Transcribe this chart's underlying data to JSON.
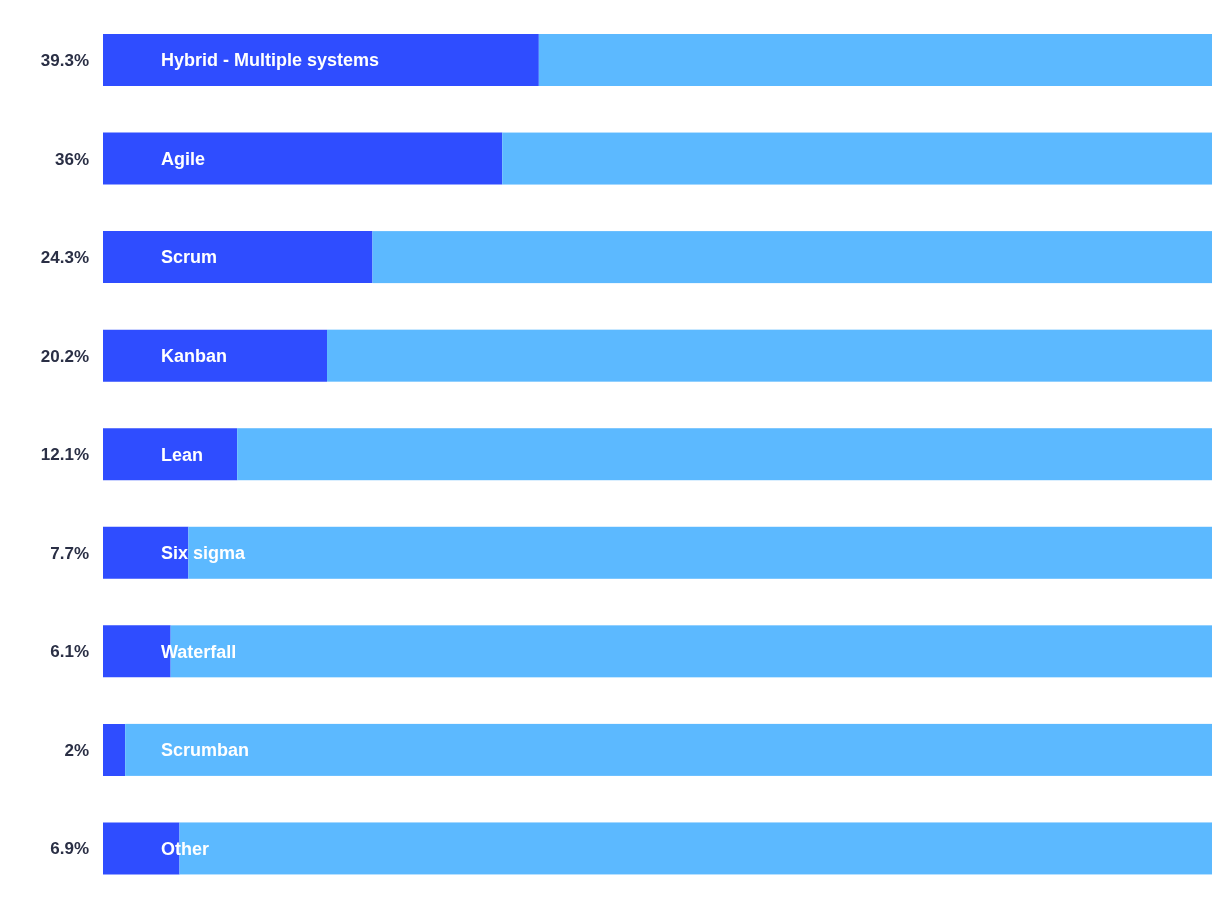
{
  "chart_data": {
    "type": "bar",
    "orientation": "horizontal",
    "categories": [
      "Hybrid - Multiple systems",
      "Agile",
      "Scrum",
      "Kanban",
      "Lean",
      "Six sigma",
      "Waterfall",
      "Scrumban",
      "Other"
    ],
    "values": [
      39.3,
      36,
      24.3,
      20.2,
      12.1,
      7.7,
      6.1,
      2,
      6.9
    ],
    "value_labels": [
      "39.3%",
      "36%",
      "24.3%",
      "20.2%",
      "12.1%",
      "7.7%",
      "6.1%",
      "2%",
      "6.9%"
    ],
    "color": "#2f4dff",
    "xlim": [
      0,
      100
    ],
    "tick_labels": false,
    "grid": false,
    "legend": false
  }
}
